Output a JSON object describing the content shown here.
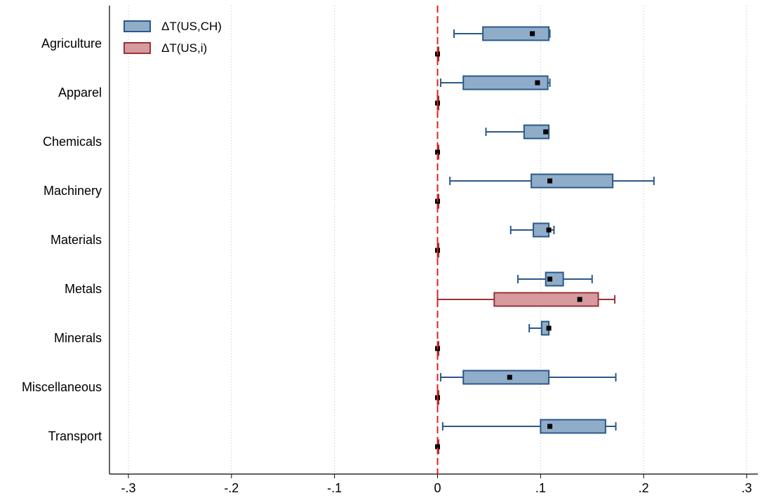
{
  "chart_data": {
    "type": "boxplot",
    "orientation": "horizontal",
    "xlim": [
      -0.3,
      0.3
    ],
    "x_ticks": [
      -0.3,
      -0.2,
      -0.1,
      0,
      0.1,
      0.2,
      0.3
    ],
    "x_tick_labels": [
      "-.3",
      "-.2",
      "-.1",
      "0",
      ".1",
      ".2",
      ".3"
    ],
    "reference_line": {
      "x": 0,
      "color": "#e0201b",
      "style": "dashed"
    },
    "grid": {
      "vertical": true,
      "style": "dotted"
    },
    "legend": {
      "placement": "top-left"
    },
    "categories": [
      "Agriculture",
      "Apparel",
      "Chemicals",
      "Machinery",
      "Materials",
      "Metals",
      "Minerals",
      "Miscellaneous",
      "Transport"
    ],
    "series": [
      {
        "name": "ΔT(US,CH)",
        "fill": "#8fadc9",
        "stroke": "#2b5889",
        "boxes": [
          {
            "min": 0.016,
            "q1": 0.044,
            "median": 0.092,
            "q3": 0.108,
            "max": 0.109
          },
          {
            "min": 0.003,
            "q1": 0.025,
            "median": 0.097,
            "q3": 0.107,
            "max": 0.109
          },
          {
            "min": 0.047,
            "q1": 0.084,
            "median": 0.105,
            "q3": 0.108,
            "max": 0.108
          },
          {
            "min": 0.012,
            "q1": 0.091,
            "median": 0.109,
            "q3": 0.17,
            "max": 0.21
          },
          {
            "min": 0.071,
            "q1": 0.093,
            "median": 0.108,
            "q3": 0.108,
            "max": 0.113
          },
          {
            "min": 0.078,
            "q1": 0.105,
            "median": 0.109,
            "q3": 0.122,
            "max": 0.15
          },
          {
            "min": 0.089,
            "q1": 0.101,
            "median": 0.108,
            "q3": 0.108,
            "max": 0.108
          },
          {
            "min": 0.003,
            "q1": 0.025,
            "median": 0.07,
            "q3": 0.108,
            "max": 0.173
          },
          {
            "min": 0.005,
            "q1": 0.1,
            "median": 0.109,
            "q3": 0.163,
            "max": 0.173
          }
        ]
      },
      {
        "name": "ΔT(US,i)",
        "fill": "#d59b9f",
        "stroke": "#9b3236",
        "boxes": [
          {
            "min": 0,
            "q1": 0,
            "median": 0,
            "q3": 0,
            "max": 0
          },
          {
            "min": 0,
            "q1": 0,
            "median": 0,
            "q3": 0,
            "max": 0
          },
          {
            "min": 0,
            "q1": 0,
            "median": 0,
            "q3": 0,
            "max": 0
          },
          {
            "min": 0,
            "q1": 0,
            "median": 0,
            "q3": 0,
            "max": 0
          },
          {
            "min": 0,
            "q1": 0,
            "median": 0,
            "q3": 0,
            "max": 0
          },
          {
            "min": 0,
            "q1": 0.055,
            "median": 0.138,
            "q3": 0.156,
            "max": 0.172
          },
          {
            "min": 0,
            "q1": 0,
            "median": 0,
            "q3": 0,
            "max": 0
          },
          {
            "min": 0,
            "q1": 0,
            "median": 0,
            "q3": 0,
            "max": 0
          },
          {
            "min": 0,
            "q1": 0,
            "median": 0,
            "q3": 0,
            "max": 0
          }
        ]
      }
    ]
  }
}
